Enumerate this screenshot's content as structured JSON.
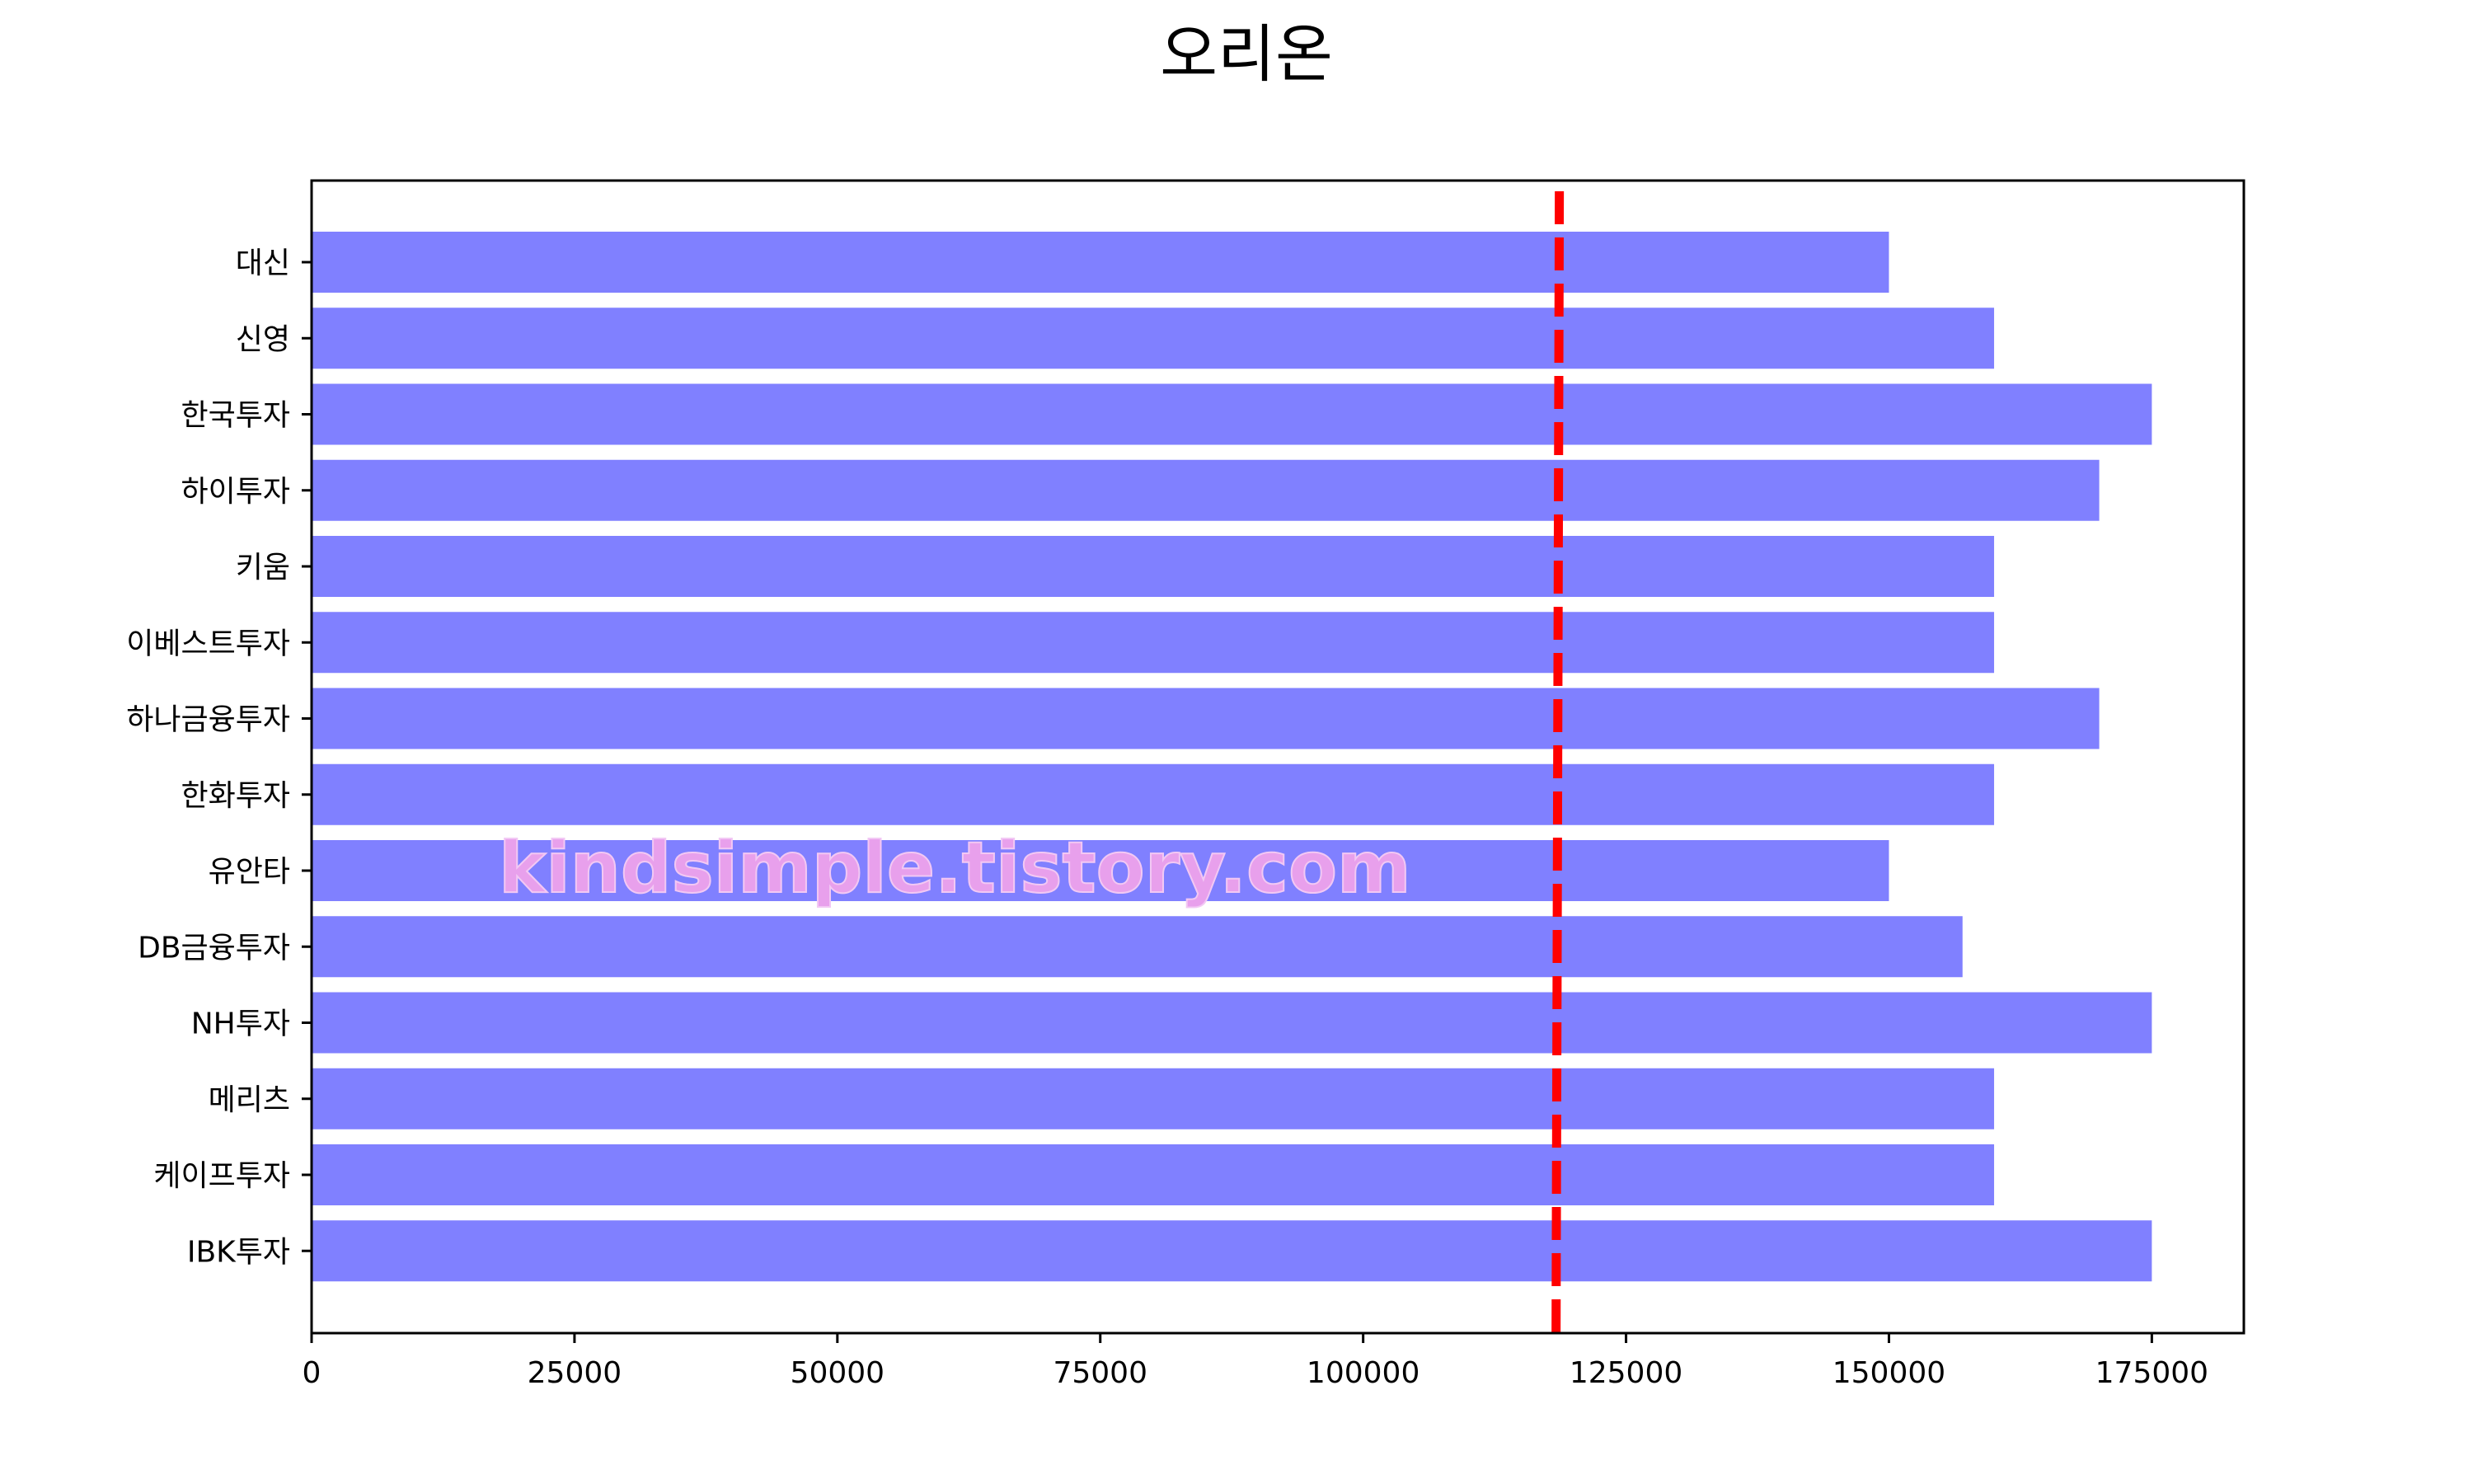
{
  "chart_data": {
    "type": "bar",
    "orientation": "horizontal",
    "title": "오리온",
    "xlabel": "",
    "ylabel": "",
    "categories": [
      "대신",
      "신영",
      "한국투자",
      "하이투자",
      "키움",
      "이베스트투자",
      "하나금융투자",
      "한화투자",
      "유안타",
      "DB금융투자",
      "NH투자",
      "메리츠",
      "케이프투자",
      "IBK투자"
    ],
    "values": [
      150000,
      160000,
      175000,
      170000,
      160000,
      160000,
      170000,
      160000,
      150000,
      157000,
      175000,
      160000,
      160000,
      175000
    ],
    "xlim": [
      0,
      183750
    ],
    "xticks": [
      0,
      25000,
      50000,
      75000,
      100000,
      125000,
      150000,
      175000
    ],
    "xtick_labels": [
      "0",
      "25000",
      "50000",
      "75000",
      "100000",
      "125000",
      "150000",
      "175000"
    ],
    "reference_line": {
      "x": 118500,
      "style": "dashed",
      "color": "#ff0000"
    },
    "bar_color": "#8080ff",
    "grid": false,
    "legend": "none"
  },
  "watermark": "kindsimple.tistory.com",
  "colors": {
    "bar": "#8080ff",
    "reference_line": "#ff0000",
    "watermark": "#e8a0ec",
    "axis": "#000000"
  }
}
